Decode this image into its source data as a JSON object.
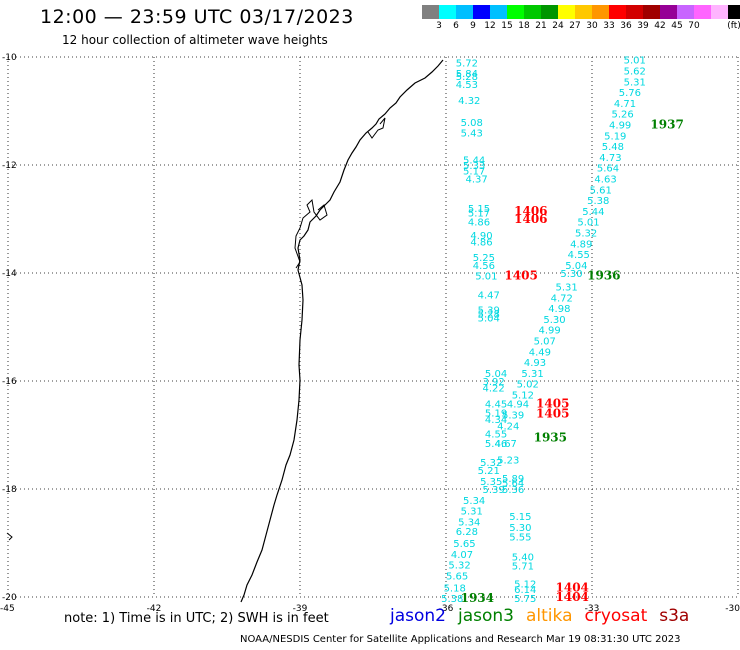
{
  "title": "12:00 — 23:59 UTC 03/17/2023",
  "subtitle": "12 hour collection of altimeter wave heights",
  "legend": {
    "unit": "(ft)",
    "colors": [
      "#808080",
      "#00ffff",
      "#00bfff",
      "#0000ff",
      "#00c0ff",
      "#00ff00",
      "#00c800",
      "#009600",
      "#ffff00",
      "#ffc800",
      "#ff9600",
      "#ff0000",
      "#d20000",
      "#a00000",
      "#960096",
      "#c864ff",
      "#ff64ff",
      "#ffb4ff",
      "#000000"
    ],
    "labels": [
      "3",
      "6",
      "9",
      "12",
      "15",
      "18",
      "21",
      "24",
      "27",
      "30",
      "33",
      "36",
      "39",
      "42",
      "45",
      "70"
    ]
  },
  "map": {
    "lat_ticks": [
      "-10",
      "-12",
      "-14",
      "-16",
      "-18",
      "-20"
    ],
    "lon_ticks": [
      "-45",
      "-42",
      "-39",
      "-36",
      "-33",
      "-30"
    ],
    "grid": "dotted"
  },
  "swh_values": [
    {
      "lon": -35.8,
      "lat": -10.1,
      "v": "5.72"
    },
    {
      "lon": -35.8,
      "lat": -10.3,
      "v": "5.84"
    },
    {
      "lon": -35.8,
      "lat": -10.35,
      "v": "5.28"
    },
    {
      "lon": -35.8,
      "lat": -10.5,
      "v": "4.53"
    },
    {
      "lon": -35.75,
      "lat": -10.8,
      "v": "4.32"
    },
    {
      "lon": -35.7,
      "lat": -11.2,
      "v": "5.08"
    },
    {
      "lon": -35.7,
      "lat": -11.4,
      "v": "5.43"
    },
    {
      "lon": -35.65,
      "lat": -11.9,
      "v": "5.44"
    },
    {
      "lon": -35.65,
      "lat": -12.0,
      "v": "5.33"
    },
    {
      "lon": -35.65,
      "lat": -12.1,
      "v": "5.17"
    },
    {
      "lon": -35.6,
      "lat": -12.25,
      "v": "4.37"
    },
    {
      "lon": -35.55,
      "lat": -12.8,
      "v": "5.15"
    },
    {
      "lon": -35.55,
      "lat": -12.88,
      "v": "5.17"
    },
    {
      "lon": -35.55,
      "lat": -13.05,
      "v": "4.86"
    },
    {
      "lon": -35.5,
      "lat": -13.3,
      "v": "4.90"
    },
    {
      "lon": -35.5,
      "lat": -13.42,
      "v": "4.86"
    },
    {
      "lon": -35.45,
      "lat": -13.7,
      "v": "5.25"
    },
    {
      "lon": -35.45,
      "lat": -13.85,
      "v": "4.56"
    },
    {
      "lon": -35.4,
      "lat": -14.05,
      "v": "5.01"
    },
    {
      "lon": -35.35,
      "lat": -14.4,
      "v": "4.47"
    },
    {
      "lon": -35.35,
      "lat": -14.68,
      "v": "5.39"
    },
    {
      "lon": -35.35,
      "lat": -14.75,
      "v": "5.28"
    },
    {
      "lon": -35.35,
      "lat": -14.82,
      "v": "5.04"
    },
    {
      "lon": -35.2,
      "lat": -15.85,
      "v": "5.04"
    },
    {
      "lon": -35.25,
      "lat": -16.0,
      "v": "3.92"
    },
    {
      "lon": -35.25,
      "lat": -16.12,
      "v": "4.22"
    },
    {
      "lon": -35.2,
      "lat": -16.42,
      "v": "4.45"
    },
    {
      "lon": -35.2,
      "lat": -16.58,
      "v": "5.19"
    },
    {
      "lon": -35.2,
      "lat": -16.7,
      "v": "4.34"
    },
    {
      "lon": -35.2,
      "lat": -16.97,
      "v": "4.55"
    },
    {
      "lon": -35.2,
      "lat": -17.15,
      "v": "5.46"
    },
    {
      "lon": -35.3,
      "lat": -17.5,
      "v": "5.32"
    },
    {
      "lon": -35.35,
      "lat": -17.65,
      "v": "5.21"
    },
    {
      "lon": -35.3,
      "lat": -17.85,
      "v": "5.35"
    },
    {
      "lon": -35.25,
      "lat": -18.0,
      "v": "5.39"
    },
    {
      "lon": -35.65,
      "lat": -18.2,
      "v": "5.34"
    },
    {
      "lon": -35.7,
      "lat": -18.4,
      "v": "5.31"
    },
    {
      "lon": -35.75,
      "lat": -18.6,
      "v": "5.34"
    },
    {
      "lon": -35.8,
      "lat": -18.78,
      "v": "6.28"
    },
    {
      "lon": -35.85,
      "lat": -19.0,
      "v": "5.65"
    },
    {
      "lon": -35.9,
      "lat": -19.2,
      "v": "4.07"
    },
    {
      "lon": -35.95,
      "lat": -19.4,
      "v": "5.32"
    },
    {
      "lon": -36.0,
      "lat": -19.6,
      "v": "5.65"
    },
    {
      "lon": -36.05,
      "lat": -19.82,
      "v": "5.18"
    },
    {
      "lon": -36.1,
      "lat": -20.02,
      "v": "5.38"
    },
    {
      "lon": -34.7,
      "lat": -18.5,
      "v": "5.15"
    },
    {
      "lon": -34.7,
      "lat": -18.7,
      "v": "5.30"
    },
    {
      "lon": -34.7,
      "lat": -18.88,
      "v": "5.55"
    },
    {
      "lon": -34.65,
      "lat": -19.25,
      "v": "5.40"
    },
    {
      "lon": -34.65,
      "lat": -19.42,
      "v": "5.71"
    },
    {
      "lon": -34.6,
      "lat": -19.75,
      "v": "5.12"
    },
    {
      "lon": -34.6,
      "lat": -19.85,
      "v": "6.14"
    },
    {
      "lon": -34.6,
      "lat": -20.02,
      "v": "5.75"
    },
    {
      "lon": -32.35,
      "lat": -10.05,
      "v": "5.01"
    },
    {
      "lon": -32.35,
      "lat": -10.25,
      "v": "5.62"
    },
    {
      "lon": -32.35,
      "lat": -10.45,
      "v": "5.31"
    },
    {
      "lon": -32.45,
      "lat": -10.65,
      "v": "5.76"
    },
    {
      "lon": -32.55,
      "lat": -10.85,
      "v": "4.71"
    },
    {
      "lon": -32.6,
      "lat": -11.05,
      "v": "5.26"
    },
    {
      "lon": -32.65,
      "lat": -11.25,
      "v": "4.99"
    },
    {
      "lon": -32.75,
      "lat": -11.45,
      "v": "5.19"
    },
    {
      "lon": -32.8,
      "lat": -11.65,
      "v": "5.48"
    },
    {
      "lon": -32.85,
      "lat": -11.85,
      "v": "4.73"
    },
    {
      "lon": -32.9,
      "lat": -12.05,
      "v": "5.64"
    },
    {
      "lon": -32.95,
      "lat": -12.25,
      "v": "4.63"
    },
    {
      "lon": -33.05,
      "lat": -12.45,
      "v": "5.61"
    },
    {
      "lon": -33.1,
      "lat": -12.65,
      "v": "5.38"
    },
    {
      "lon": -33.2,
      "lat": -12.85,
      "v": "5.44"
    },
    {
      "lon": -33.3,
      "lat": -13.05,
      "v": "5.01"
    },
    {
      "lon": -33.35,
      "lat": -13.25,
      "v": "5.32"
    },
    {
      "lon": -33.45,
      "lat": -13.45,
      "v": "4.89"
    },
    {
      "lon": -33.5,
      "lat": -13.65,
      "v": "4.55"
    },
    {
      "lon": -33.55,
      "lat": -13.85,
      "v": "5.04"
    },
    {
      "lon": -33.65,
      "lat": -14.0,
      "v": "5.30"
    },
    {
      "lon": -33.75,
      "lat": -14.25,
      "v": "5.31"
    },
    {
      "lon": -33.85,
      "lat": -14.45,
      "v": "4.72"
    },
    {
      "lon": -33.9,
      "lat": -14.65,
      "v": "4.98"
    },
    {
      "lon": -34.0,
      "lat": -14.85,
      "v": "5.30"
    },
    {
      "lon": -34.1,
      "lat": -15.05,
      "v": "4.99"
    },
    {
      "lon": -34.2,
      "lat": -15.25,
      "v": "5.07"
    },
    {
      "lon": -34.3,
      "lat": -15.45,
      "v": "4.49"
    },
    {
      "lon": -34.4,
      "lat": -15.65,
      "v": "4.93"
    },
    {
      "lon": -34.45,
      "lat": -15.85,
      "v": "5.31"
    },
    {
      "lon": -34.55,
      "lat": -16.05,
      "v": "5.02"
    },
    {
      "lon": -34.65,
      "lat": -16.25,
      "v": "5.12"
    },
    {
      "lon": -34.75,
      "lat": -16.42,
      "v": "4.94"
    },
    {
      "lon": -34.85,
      "lat": -16.62,
      "v": "5.39"
    },
    {
      "lon": -34.95,
      "lat": -16.82,
      "v": "4.24"
    },
    {
      "lon": -35.0,
      "lat": -17.15,
      "v": "4.67"
    },
    {
      "lon": -34.95,
      "lat": -17.45,
      "v": "5.23"
    },
    {
      "lon": -34.85,
      "lat": -17.8,
      "v": "5.89"
    },
    {
      "lon": -34.85,
      "lat": -17.88,
      "v": "5.64"
    },
    {
      "lon": -34.85,
      "lat": -18.0,
      "v": "5.36"
    }
  ],
  "time_labels": [
    {
      "lon": -34.6,
      "lat": -12.85,
      "text": "1406",
      "color": "#ff0000"
    },
    {
      "lon": -34.6,
      "lat": -13.0,
      "text": "1406",
      "color": "#ff0000"
    },
    {
      "lon": -34.8,
      "lat": -14.05,
      "text": "1405",
      "color": "#ff0000"
    },
    {
      "lon": -33.1,
      "lat": -14.05,
      "text": "1936",
      "color": "#008000"
    },
    {
      "lon": -31.8,
      "lat": -11.25,
      "text": "1937",
      "color": "#008000"
    },
    {
      "lon": -34.15,
      "lat": -16.42,
      "text": "1405",
      "color": "#ff0000"
    },
    {
      "lon": -34.15,
      "lat": -16.6,
      "text": "1405",
      "color": "#ff0000"
    },
    {
      "lon": -34.2,
      "lat": -17.05,
      "text": "1935",
      "color": "#008000"
    },
    {
      "lon": -33.75,
      "lat": -19.82,
      "text": "1404",
      "color": "#ff0000"
    },
    {
      "lon": -33.75,
      "lat": -20.0,
      "text": "1404",
      "color": "#ff0000"
    },
    {
      "lon": -35.7,
      "lat": -20.02,
      "text": "1934",
      "color": "#008000"
    }
  ],
  "footer": {
    "note": "note:  1) Time is in UTC;  2) SWH is in feet",
    "credit": "NOAA/NESDIS Center for Satellite Applications and Research    Mar 19 08:31:30 UTC 2023",
    "missions": [
      {
        "name": "jason2",
        "color": "#0000e0"
      },
      {
        "name": "jason3",
        "color": "#008000"
      },
      {
        "name": "altika",
        "color": "#ff9600"
      },
      {
        "name": "cryosat",
        "color": "#ff0000"
      },
      {
        "name": "s3a",
        "color": "#a00000"
      }
    ]
  }
}
